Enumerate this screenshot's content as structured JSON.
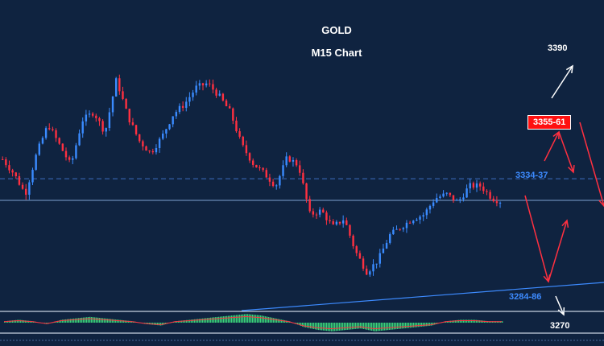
{
  "chart_data": {
    "type": "candlestick",
    "title": "GOLD",
    "subtitle": "M15 Chart",
    "levels": [
      {
        "label": "3390",
        "value": 3390,
        "color": "#ffffff"
      },
      {
        "label": "3355-61",
        "value": 3358,
        "color": "#ffffff",
        "box": "#ff1010"
      },
      {
        "label": "3334-37",
        "value": 3335.5,
        "color": "#3d8bff"
      },
      {
        "label": "3284-86",
        "value": 3285,
        "color": "#3d8bff"
      },
      {
        "label": "3270",
        "value": 3270,
        "color": "#ffffff"
      }
    ],
    "price_path": [
      3345,
      3338,
      3328,
      3348,
      3362,
      3352,
      3342,
      3364,
      3368,
      3358,
      3384,
      3366,
      3354,
      3348,
      3356,
      3367,
      3372,
      3380,
      3382,
      3376,
      3368,
      3352,
      3343,
      3338,
      3332,
      3346,
      3342,
      3318,
      3320,
      3312,
      3316,
      3300,
      3290,
      3296,
      3308,
      3312,
      3316,
      3318,
      3326,
      3328,
      3324,
      3332,
      3332,
      3326,
      3324
    ],
    "current_price": 3325,
    "histogram": [
      1,
      2,
      1,
      -1,
      2,
      3,
      4,
      3,
      2,
      1,
      -1,
      -2,
      1,
      2,
      3,
      4,
      5,
      6,
      5,
      3,
      1,
      -3,
      -5,
      -6,
      -5,
      -4,
      -6,
      -5,
      -4,
      -3,
      -2,
      1,
      2,
      2,
      1,
      1
    ]
  },
  "colors": {
    "background": "#0f2340",
    "bull": "#3a8bff",
    "bear": "#ff3040",
    "histogram": "#3ad47a",
    "signal_line": "#ff3040"
  }
}
